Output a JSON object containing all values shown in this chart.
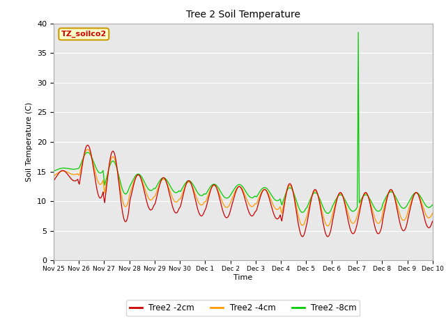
{
  "title": "Tree 2 Soil Temperature",
  "xlabel": "Time",
  "ylabel": "Soil Temperature (C)",
  "ylim": [
    0,
    40
  ],
  "yticks": [
    0,
    5,
    10,
    15,
    20,
    25,
    30,
    35,
    40
  ],
  "xtick_labels": [
    "Nov 25",
    "Nov 26",
    "Nov 27",
    "Nov 28",
    "Nov 29",
    "Nov 30",
    "Dec 1",
    "Dec 2",
    "Dec 3",
    "Dec 4",
    "Dec 5",
    "Dec 6",
    "Dec 7",
    "Dec 8",
    "Dec 9",
    "Dec 10"
  ],
  "line_colors": [
    "#cc0000",
    "#ff9900",
    "#00cc00"
  ],
  "line_labels": [
    "Tree2 -2cm",
    "Tree2 -4cm",
    "Tree2 -8cm"
  ],
  "annotation_text": "TZ_soilco2",
  "annotation_color": "#cc0000",
  "annotation_bg": "#ffffcc",
  "annotation_edge": "#cc9900",
  "bg_color": "#e8e8e8",
  "spike_value": 38.5
}
